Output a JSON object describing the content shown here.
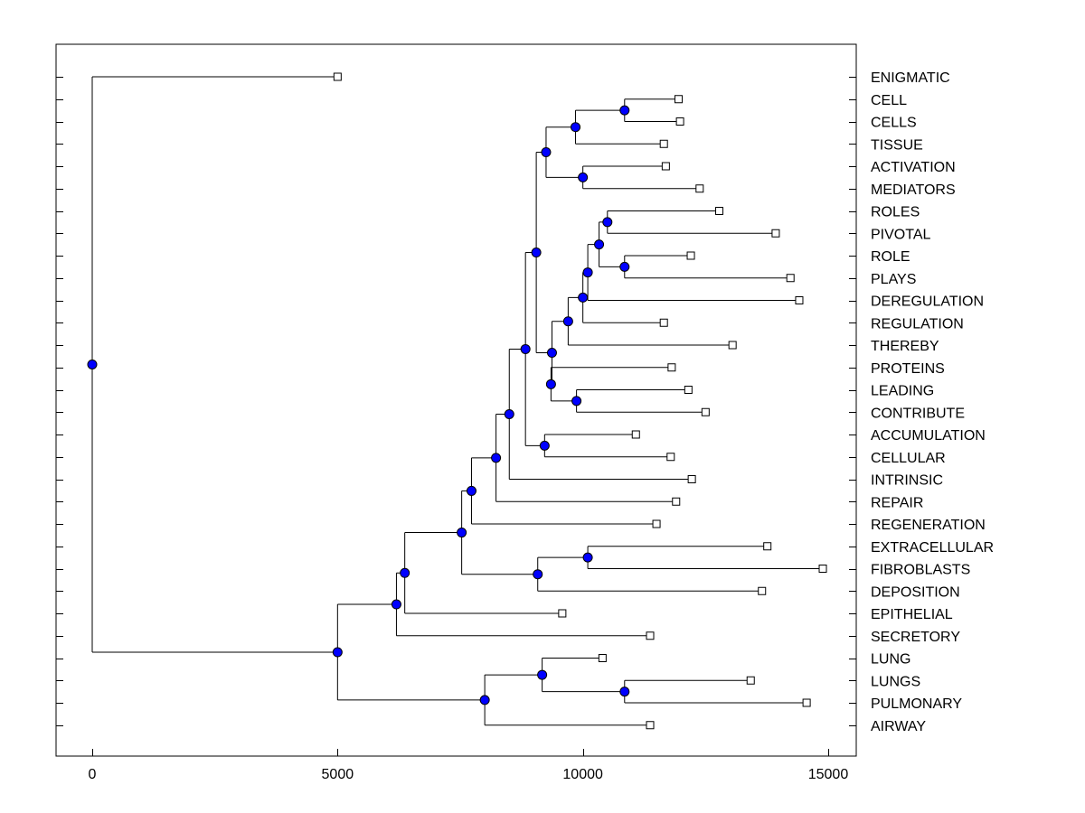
{
  "chart_data": {
    "type": "dendrogram",
    "title": "",
    "xlabel": "",
    "ylabel": "",
    "xlim": [
      -750,
      15500
    ],
    "x_ticks": [
      0,
      5000,
      10000,
      15000
    ],
    "x_tick_labels": [
      "0",
      "5000",
      "10000",
      "15000"
    ],
    "leaves": [
      {
        "label": "ENIGMATIC",
        "x": 5000
      },
      {
        "label": "CELL",
        "x": 11950
      },
      {
        "label": "CELLS",
        "x": 11980
      },
      {
        "label": "TISSUE",
        "x": 11650
      },
      {
        "label": "ACTIVATION",
        "x": 11690
      },
      {
        "label": "MEDIATORS",
        "x": 12380
      },
      {
        "label": "ROLES",
        "x": 12780
      },
      {
        "label": "PIVOTAL",
        "x": 13930
      },
      {
        "label": "ROLE",
        "x": 12200
      },
      {
        "label": "PLAYS",
        "x": 14230
      },
      {
        "label": "DEREGULATION",
        "x": 14410
      },
      {
        "label": "REGULATION",
        "x": 11650
      },
      {
        "label": "THEREBY",
        "x": 13050
      },
      {
        "label": "PROTEINS",
        "x": 11810
      },
      {
        "label": "LEADING",
        "x": 12150
      },
      {
        "label": "CONTRIBUTE",
        "x": 12500
      },
      {
        "label": "ACCUMULATION",
        "x": 11080
      },
      {
        "label": "CELLULAR",
        "x": 11790
      },
      {
        "label": "INTRINSIC",
        "x": 12220
      },
      {
        "label": "REPAIR",
        "x": 11900
      },
      {
        "label": "REGENERATION",
        "x": 11500
      },
      {
        "label": "EXTRACELLULAR",
        "x": 13760
      },
      {
        "label": "FIBROBLASTS",
        "x": 14890
      },
      {
        "label": "DEPOSITION",
        "x": 13650
      },
      {
        "label": "EPITHELIAL",
        "x": 9580
      },
      {
        "label": "SECRETORY",
        "x": 11370
      },
      {
        "label": "LUNG",
        "x": 10400
      },
      {
        "label": "LUNGS",
        "x": 13420
      },
      {
        "label": "PULMONARY",
        "x": 14560
      },
      {
        "label": "AIRWAY",
        "x": 11370
      }
    ],
    "merges": [
      {
        "id": "n1",
        "x": 10850,
        "children": [
          "CELL",
          "CELLS"
        ]
      },
      {
        "id": "n2",
        "x": 9850,
        "children": [
          "n1",
          "TISSUE"
        ]
      },
      {
        "id": "n3",
        "x": 10000,
        "children": [
          "ACTIVATION",
          "MEDIATORS"
        ]
      },
      {
        "id": "n4",
        "x": 9250,
        "children": [
          "n2",
          "n3"
        ]
      },
      {
        "id": "n5",
        "x": 10500,
        "children": [
          "ROLES",
          "PIVOTAL"
        ]
      },
      {
        "id": "n6",
        "x": 10850,
        "children": [
          "ROLE",
          "PLAYS"
        ]
      },
      {
        "id": "n7",
        "x": 10330,
        "children": [
          "n5",
          "n6"
        ]
      },
      {
        "id": "n8",
        "x": 10100,
        "children": [
          "n7",
          "DEREGULATION"
        ]
      },
      {
        "id": "n9",
        "x": 10000,
        "children": [
          "n8",
          "REGULATION"
        ]
      },
      {
        "id": "n10",
        "x": 9700,
        "children": [
          "n9",
          "THEREBY"
        ]
      },
      {
        "id": "n11",
        "x": 9870,
        "children": [
          "LEADING",
          "CONTRIBUTE"
        ]
      },
      {
        "id": "n12",
        "x": 9350,
        "children": [
          "PROTEINS",
          "n11"
        ]
      },
      {
        "id": "n13",
        "x": 9370,
        "children": [
          "n10",
          "n12"
        ]
      },
      {
        "id": "n14",
        "x": 9050,
        "children": [
          "n4",
          "n13"
        ]
      },
      {
        "id": "n15",
        "x": 9220,
        "children": [
          "ACCUMULATION",
          "CELLULAR"
        ]
      },
      {
        "id": "n16",
        "x": 8830,
        "children": [
          "n14",
          "n15"
        ]
      },
      {
        "id": "n17",
        "x": 8500,
        "children": [
          "n16",
          "INTRINSIC"
        ]
      },
      {
        "id": "n18",
        "x": 8230,
        "children": [
          "n17",
          "REPAIR"
        ]
      },
      {
        "id": "n19",
        "x": 7730,
        "children": [
          "n18",
          "REGENERATION"
        ]
      },
      {
        "id": "n20",
        "x": 10100,
        "children": [
          "EXTRACELLULAR",
          "FIBROBLASTS"
        ]
      },
      {
        "id": "n21",
        "x": 9080,
        "children": [
          "n20",
          "DEPOSITION"
        ]
      },
      {
        "id": "n22",
        "x": 7530,
        "children": [
          "n19",
          "n21"
        ]
      },
      {
        "id": "n23",
        "x": 6370,
        "children": [
          "n22",
          "EPITHELIAL"
        ]
      },
      {
        "id": "n24",
        "x": 6200,
        "children": [
          "n23",
          "SECRETORY"
        ]
      },
      {
        "id": "n25",
        "x": 10850,
        "children": [
          "LUNGS",
          "PULMONARY"
        ]
      },
      {
        "id": "n26",
        "x": 9170,
        "children": [
          "LUNG",
          "n25"
        ]
      },
      {
        "id": "n27",
        "x": 8000,
        "children": [
          "n26",
          "AIRWAY"
        ]
      },
      {
        "id": "n28",
        "x": 5000,
        "children": [
          "n24",
          "n27"
        ]
      },
      {
        "id": "root",
        "x": 0,
        "children": [
          "ENIGMATIC",
          "n28"
        ]
      }
    ],
    "colors": {
      "node_fill": "#0000ff",
      "leaf_fill": "#ffffff",
      "line": "#000000",
      "background": "#ffffff"
    }
  }
}
